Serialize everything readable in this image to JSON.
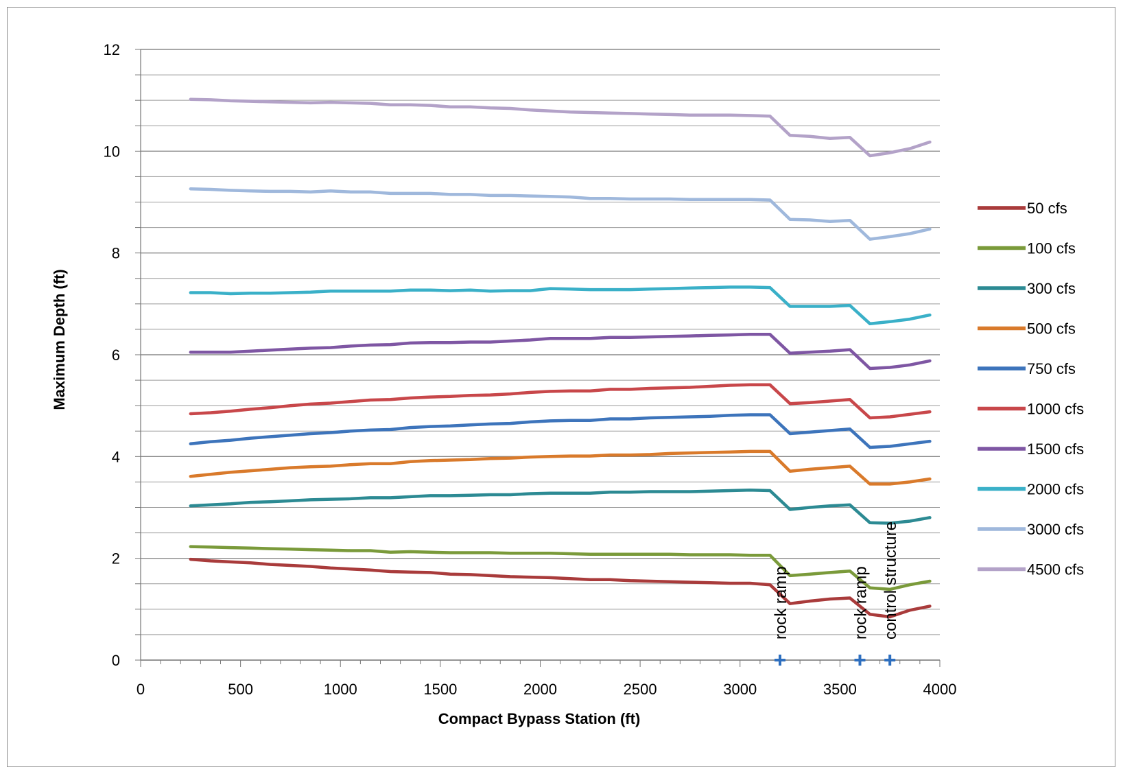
{
  "chart_data": {
    "type": "line",
    "title": "",
    "xlabel": "Compact Bypass Station (ft)",
    "ylabel": "Maximum Depth (ft)",
    "xlim": [
      0,
      4000
    ],
    "ylim": [
      0,
      12
    ],
    "xticks": [
      0,
      500,
      1000,
      1500,
      2000,
      2500,
      3000,
      3500,
      4000
    ],
    "yticks": [
      0,
      2,
      4,
      6,
      8,
      10,
      12
    ],
    "y_minor_step": 0.5,
    "grid": true,
    "legend_position": "right",
    "x": [
      250,
      350,
      450,
      550,
      650,
      750,
      850,
      950,
      1050,
      1150,
      1250,
      1350,
      1450,
      1550,
      1650,
      1750,
      1850,
      1950,
      2050,
      2150,
      2250,
      2350,
      2450,
      2550,
      2650,
      2750,
      2850,
      2950,
      3050,
      3150,
      3250,
      3350,
      3450,
      3550,
      3650,
      3750,
      3850,
      3950
    ],
    "series": [
      {
        "name": "50 cfs",
        "color": "#a93b3b",
        "values": [
          1.98,
          1.95,
          1.93,
          1.91,
          1.88,
          1.86,
          1.84,
          1.81,
          1.79,
          1.77,
          1.74,
          1.73,
          1.72,
          1.69,
          1.68,
          1.66,
          1.64,
          1.63,
          1.62,
          1.6,
          1.58,
          1.58,
          1.56,
          1.55,
          1.54,
          1.53,
          1.52,
          1.51,
          1.51,
          1.48,
          1.11,
          1.16,
          1.2,
          1.22,
          0.9,
          0.85,
          0.98,
          1.06
        ]
      },
      {
        "name": "100 cfs",
        "color": "#7a9a3a",
        "values": [
          2.23,
          2.22,
          2.21,
          2.2,
          2.19,
          2.18,
          2.17,
          2.16,
          2.15,
          2.15,
          2.12,
          2.13,
          2.12,
          2.11,
          2.11,
          2.11,
          2.1,
          2.1,
          2.1,
          2.09,
          2.08,
          2.08,
          2.08,
          2.08,
          2.08,
          2.07,
          2.07,
          2.07,
          2.06,
          2.06,
          1.66,
          1.69,
          1.72,
          1.75,
          1.42,
          1.39,
          1.48,
          1.55
        ]
      },
      {
        "name": "300 cfs",
        "color": "#2c8a93",
        "values": [
          3.03,
          3.05,
          3.07,
          3.1,
          3.11,
          3.13,
          3.15,
          3.16,
          3.17,
          3.19,
          3.19,
          3.21,
          3.23,
          3.23,
          3.24,
          3.25,
          3.25,
          3.27,
          3.28,
          3.28,
          3.28,
          3.3,
          3.3,
          3.31,
          3.31,
          3.31,
          3.32,
          3.33,
          3.34,
          3.33,
          2.96,
          3.0,
          3.03,
          3.05,
          2.7,
          2.69,
          2.73,
          2.8
        ]
      },
      {
        "name": "500 cfs",
        "color": "#d97a2b",
        "values": [
          3.61,
          3.65,
          3.69,
          3.72,
          3.75,
          3.78,
          3.8,
          3.81,
          3.84,
          3.86,
          3.86,
          3.9,
          3.92,
          3.93,
          3.94,
          3.96,
          3.97,
          3.99,
          4.0,
          4.01,
          4.01,
          4.03,
          4.03,
          4.04,
          4.06,
          4.07,
          4.08,
          4.09,
          4.1,
          4.1,
          3.71,
          3.75,
          3.78,
          3.81,
          3.46,
          3.46,
          3.5,
          3.56
        ]
      },
      {
        "name": "750 cfs",
        "color": "#3d74bb",
        "values": [
          4.25,
          4.29,
          4.32,
          4.36,
          4.39,
          4.42,
          4.45,
          4.47,
          4.5,
          4.52,
          4.53,
          4.57,
          4.59,
          4.6,
          4.62,
          4.64,
          4.65,
          4.68,
          4.7,
          4.71,
          4.71,
          4.74,
          4.74,
          4.76,
          4.77,
          4.78,
          4.79,
          4.81,
          4.82,
          4.82,
          4.45,
          4.48,
          4.51,
          4.54,
          4.18,
          4.2,
          4.25,
          4.3
        ]
      },
      {
        "name": "1000 cfs",
        "color": "#c8474a",
        "values": [
          4.84,
          4.86,
          4.89,
          4.93,
          4.96,
          5.0,
          5.03,
          5.05,
          5.08,
          5.11,
          5.12,
          5.15,
          5.17,
          5.18,
          5.2,
          5.21,
          5.23,
          5.26,
          5.28,
          5.29,
          5.29,
          5.32,
          5.32,
          5.34,
          5.35,
          5.36,
          5.38,
          5.4,
          5.41,
          5.41,
          5.04,
          5.06,
          5.09,
          5.12,
          4.76,
          4.78,
          4.83,
          4.88
        ]
      },
      {
        "name": "1500 cfs",
        "color": "#7e56a3",
        "values": [
          6.05,
          6.05,
          6.05,
          6.07,
          6.09,
          6.11,
          6.13,
          6.14,
          6.17,
          6.19,
          6.2,
          6.23,
          6.24,
          6.24,
          6.25,
          6.25,
          6.27,
          6.29,
          6.32,
          6.32,
          6.32,
          6.34,
          6.34,
          6.35,
          6.36,
          6.37,
          6.38,
          6.39,
          6.4,
          6.4,
          6.03,
          6.05,
          6.07,
          6.1,
          5.73,
          5.75,
          5.8,
          5.88
        ]
      },
      {
        "name": "2000 cfs",
        "color": "#3ab0c8",
        "values": [
          7.22,
          7.22,
          7.2,
          7.21,
          7.21,
          7.22,
          7.23,
          7.25,
          7.25,
          7.25,
          7.25,
          7.27,
          7.27,
          7.26,
          7.27,
          7.25,
          7.26,
          7.26,
          7.3,
          7.29,
          7.28,
          7.28,
          7.28,
          7.29,
          7.3,
          7.31,
          7.32,
          7.33,
          7.33,
          7.32,
          6.95,
          6.95,
          6.95,
          6.97,
          6.61,
          6.65,
          6.7,
          6.78
        ]
      },
      {
        "name": "3000 cfs",
        "color": "#9fb8dc",
        "values": [
          9.26,
          9.25,
          9.23,
          9.22,
          9.21,
          9.21,
          9.2,
          9.22,
          9.2,
          9.2,
          9.17,
          9.17,
          9.17,
          9.15,
          9.15,
          9.13,
          9.13,
          9.12,
          9.11,
          9.1,
          9.07,
          9.07,
          9.06,
          9.06,
          9.06,
          9.05,
          9.05,
          9.05,
          9.05,
          9.04,
          8.66,
          8.65,
          8.62,
          8.64,
          8.27,
          8.32,
          8.38,
          8.47
        ]
      },
      {
        "name": "4500 cfs",
        "color": "#b3a2c8",
        "values": [
          11.02,
          11.01,
          10.99,
          10.98,
          10.97,
          10.96,
          10.95,
          10.96,
          10.95,
          10.94,
          10.91,
          10.91,
          10.9,
          10.87,
          10.87,
          10.85,
          10.84,
          10.81,
          10.79,
          10.77,
          10.76,
          10.75,
          10.74,
          10.73,
          10.72,
          10.71,
          10.71,
          10.71,
          10.7,
          10.69,
          10.31,
          10.29,
          10.25,
          10.27,
          9.91,
          9.97,
          10.05,
          10.18
        ]
      }
    ],
    "annotations": [
      {
        "text": "rock ramp",
        "x": 3200,
        "marker_color": "#2e6fbf"
      },
      {
        "text": "rock ramp",
        "x": 3600,
        "marker_color": "#2e6fbf"
      },
      {
        "text": "control structure",
        "x": 3750,
        "marker_color": "#2e6fbf"
      }
    ]
  }
}
